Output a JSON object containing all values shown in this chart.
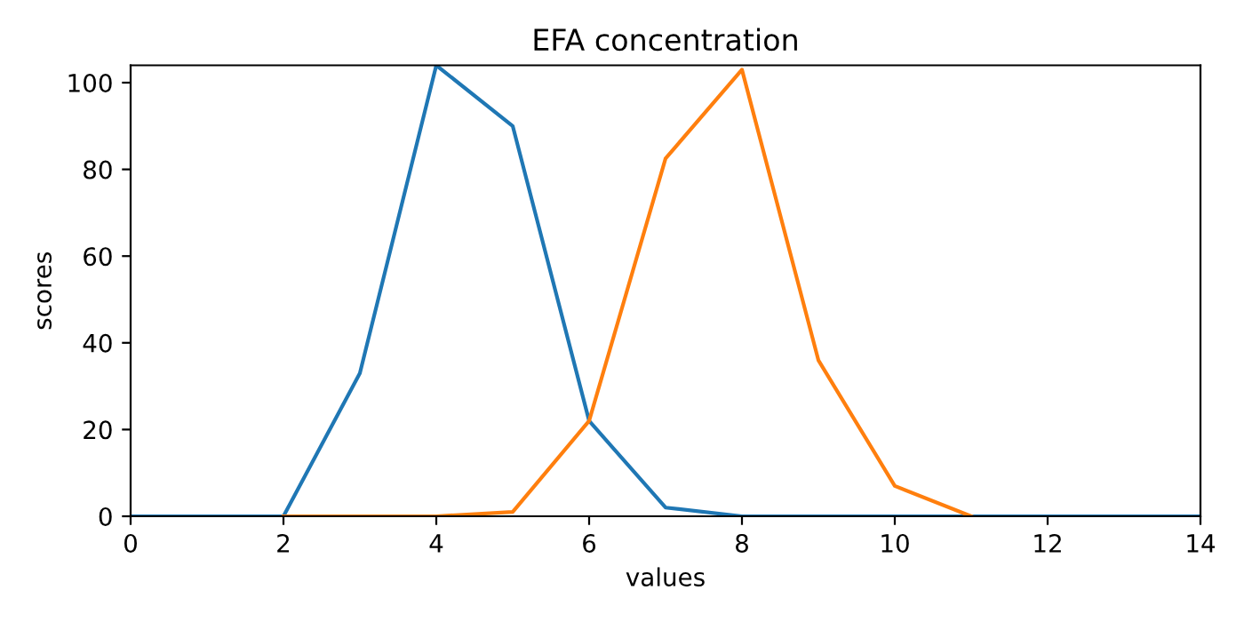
{
  "chart_data": {
    "type": "line",
    "title": "EFA concentration",
    "xlabel": "values",
    "ylabel": "scores",
    "xlim": [
      0,
      14
    ],
    "xticks": [
      0,
      2,
      4,
      6,
      8,
      10,
      12,
      14
    ],
    "ylim": [
      0,
      104
    ],
    "yticks": [
      0,
      20,
      40,
      60,
      80,
      100
    ],
    "grid": false,
    "legend": false,
    "series": [
      {
        "color": "#1f77b4",
        "x": [
          0,
          1,
          2,
          3,
          4,
          5,
          6,
          7,
          8,
          9,
          10,
          11,
          12,
          13,
          14
        ],
        "values": [
          0,
          0,
          0,
          33,
          104,
          90,
          22,
          2,
          0,
          0,
          0,
          0,
          0,
          0,
          0
        ]
      },
      {
        "color": "#ff7f0e",
        "x": [
          2,
          3,
          4,
          5,
          6,
          7,
          8,
          9,
          10,
          11
        ],
        "values": [
          0,
          0,
          0,
          1,
          22,
          82.5,
          103,
          36,
          7,
          0
        ]
      }
    ]
  }
}
